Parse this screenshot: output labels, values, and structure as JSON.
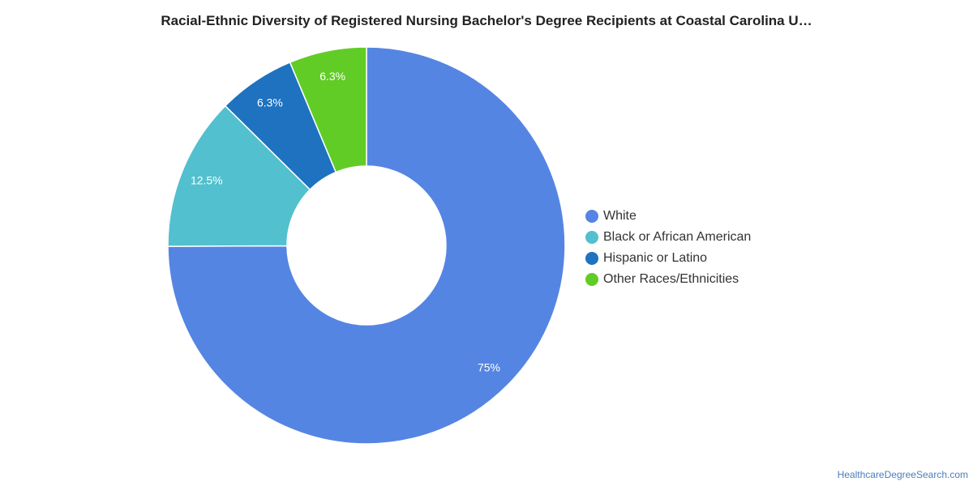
{
  "chart_data": {
    "type": "pie",
    "title": "Racial-Ethnic Diversity of Registered Nursing Bachelor's Degree Recipients at Coastal Carolina U…",
    "categories": [
      "White",
      "Black or African American",
      "Hispanic or Latino",
      "Other Races/Ethnicities"
    ],
    "values": [
      75,
      12.5,
      6.3,
      6.3
    ],
    "data_labels": [
      "75%",
      "12.5%",
      "6.3%",
      "6.3%"
    ],
    "colors": [
      "#5585e2",
      "#52c0ce",
      "#1e72bf",
      "#61cc26"
    ],
    "legend_placement": "right",
    "donut": true
  },
  "watermark": "HealthcareDegreeSearch.com"
}
